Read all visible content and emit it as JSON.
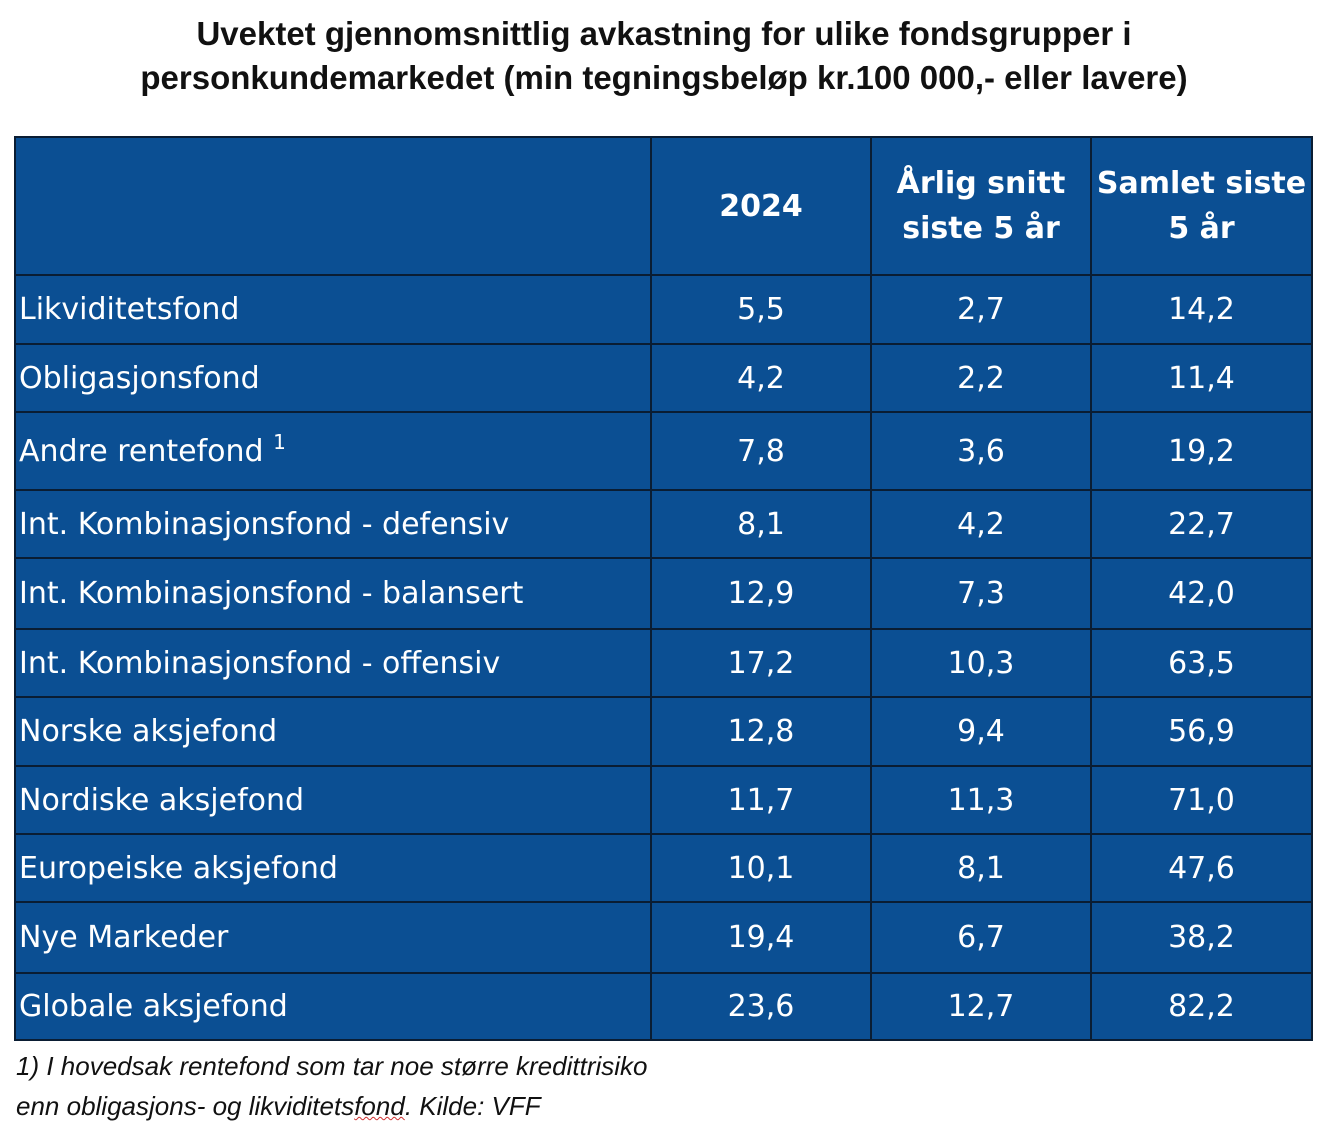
{
  "title": {
    "line1": "Uvektet gjennomsnittlig avkastning for ulike fondsgrupper i",
    "line2": "personkundemarkedet (min tegningsbeløp kr.100 000,- eller lavere)"
  },
  "table": {
    "headers": [
      {
        "line1": "",
        "line2": ""
      },
      {
        "line1": "2024",
        "line2": ""
      },
      {
        "line1": "Årlig snitt",
        "line2": "siste 5 år"
      },
      {
        "line1": "Samlet siste",
        "line2": "5 år"
      }
    ],
    "rows": [
      {
        "name": "Likviditetsfond",
        "sup": "",
        "v2024": "5,5",
        "avg5": "2,7",
        "total5": "14,2"
      },
      {
        "name": "Obligasjonsfond",
        "sup": "",
        "v2024": "4,2",
        "avg5": "2,2",
        "total5": "11,4"
      },
      {
        "name": "Andre rentefond",
        "sup": "1",
        "v2024": "7,8",
        "avg5": "3,6",
        "total5": "19,2"
      },
      {
        "name": "Int. Kombinasjonsfond - defensiv",
        "sup": "",
        "v2024": "8,1",
        "avg5": "4,2",
        "total5": "22,7"
      },
      {
        "name": "Int. Kombinasjonsfond - balansert",
        "sup": "",
        "v2024": "12,9",
        "avg5": "7,3",
        "total5": "42,0"
      },
      {
        "name": "Int. Kombinasjonsfond - offensiv",
        "sup": "",
        "v2024": "17,2",
        "avg5": "10,3",
        "total5": "63,5"
      },
      {
        "name": "Norske aksjefond",
        "sup": "",
        "v2024": "12,8",
        "avg5": "9,4",
        "total5": "56,9"
      },
      {
        "name": "Nordiske aksjefond",
        "sup": "",
        "v2024": "11,7",
        "avg5": "11,3",
        "total5": "71,0"
      },
      {
        "name": "Europeiske aksjefond",
        "sup": "",
        "v2024": "10,1",
        "avg5": "8,1",
        "total5": "47,6"
      },
      {
        "name": "Nye Markeder",
        "sup": "",
        "v2024": "19,4",
        "avg5": "6,7",
        "total5": "38,2"
      },
      {
        "name": "Globale aksjefond",
        "sup": "",
        "v2024": "23,6",
        "avg5": "12,7",
        "total5": "82,2"
      }
    ]
  },
  "footnote": {
    "line1": "1) I hovedsak rentefond som tar noe større kredittrisiko",
    "line2_pre": "enn obligasjons- og likviditets",
    "line2_squiggle": "fond",
    "line2_post": ". Kilde: VFF"
  },
  "colors": {
    "table_fill": "#0b4f93",
    "table_border": "#0a1d33",
    "text_on_table": "#ffffff"
  }
}
